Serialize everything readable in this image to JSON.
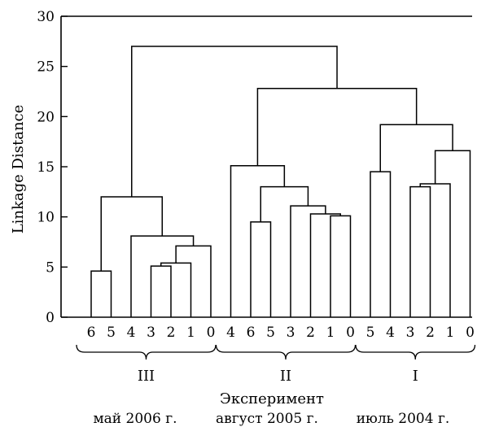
{
  "chart_data": {
    "type": "dendrogram",
    "title": "",
    "ylabel": "Linkage Distance",
    "xlabel": "Эксперимент",
    "ylim": [
      0,
      30
    ],
    "yticks": [
      0,
      5,
      10,
      15,
      20,
      25,
      30
    ],
    "leaves": [
      "6",
      "5",
      "4",
      "3",
      "2",
      "1",
      "0",
      "4",
      "6",
      "5",
      "3",
      "2",
      "1",
      "0",
      "5",
      "4",
      "3",
      "2",
      "1",
      "0"
    ],
    "groups": [
      {
        "label": "III",
        "caption": "май 2006 г.",
        "leaf_range": [
          0,
          6
        ]
      },
      {
        "label": "II",
        "caption": "август 2005 г.",
        "leaf_range": [
          7,
          13
        ]
      },
      {
        "label": "I",
        "caption": "июль 2004 г.",
        "leaf_range": [
          14,
          19
        ]
      }
    ],
    "merges": [
      {
        "a": "L0",
        "b": "L1",
        "h": 4.6
      },
      {
        "a": "L3",
        "b": "L4",
        "h": 5.1
      },
      {
        "a": "M1",
        "b": "L5",
        "h": 5.4
      },
      {
        "a": "M2",
        "b": "L6",
        "h": 7.1
      },
      {
        "a": "L2",
        "b": "M3",
        "h": 8.1
      },
      {
        "a": "M0",
        "b": "M4",
        "h": 12.0
      },
      {
        "a": "L8",
        "b": "L9",
        "h": 9.5
      },
      {
        "a": "L12",
        "b": "L13",
        "h": 10.1
      },
      {
        "a": "L11",
        "b": "M7",
        "h": 10.3
      },
      {
        "a": "L10",
        "b": "M8",
        "h": 11.1
      },
      {
        "a": "M6",
        "b": "M9",
        "h": 13.0
      },
      {
        "a": "L7",
        "b": "M10",
        "h": 15.1
      },
      {
        "a": "L14",
        "b": "L15",
        "h": 14.5
      },
      {
        "a": "L16",
        "b": "L17",
        "h": 13.0
      },
      {
        "a": "M13",
        "b": "L18",
        "h": 13.3
      },
      {
        "a": "M14",
        "b": "L19",
        "h": 16.6
      },
      {
        "a": "M12",
        "b": "M15",
        "h": 19.2
      },
      {
        "a": "M11",
        "b": "M16",
        "h": 22.8
      },
      {
        "a": "M5",
        "b": "M17",
        "h": 27.0
      }
    ]
  }
}
